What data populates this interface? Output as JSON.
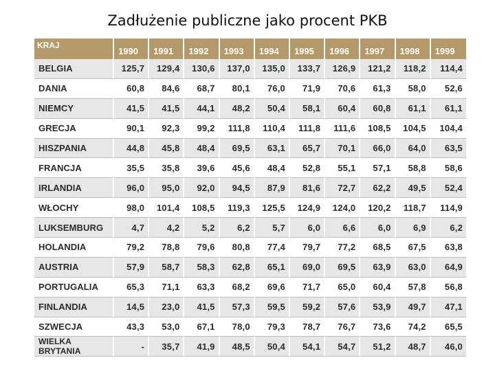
{
  "title": "Zadłużenie publiczne jako procent PKB",
  "table": {
    "country_header": "KRAJ",
    "years": [
      "1990",
      "1991",
      "1992",
      "1993",
      "1994",
      "1995",
      "1996",
      "1997",
      "1998",
      "1999"
    ],
    "rows": [
      {
        "country": "BELGIA",
        "values": [
          "125,7",
          "129,4",
          "130,6",
          "137,0",
          "135,0",
          "133,7",
          "126,9",
          "121,2",
          "118,2",
          "114,4"
        ]
      },
      {
        "country": "DANIA",
        "values": [
          "60,8",
          "84,6",
          "68,7",
          "80,1",
          "76,0",
          "71,9",
          "70,6",
          "61,3",
          "58,0",
          "52,6"
        ]
      },
      {
        "country": "NIEMCY",
        "values": [
          "41,5",
          "41,5",
          "44,1",
          "48,2",
          "50,4",
          "58,1",
          "60,4",
          "60,8",
          "61,1",
          "61,1"
        ]
      },
      {
        "country": "GRECJA",
        "values": [
          "90,1",
          "92,3",
          "99,2",
          "111,8",
          "110,4",
          "111,8",
          "111,6",
          "108,5",
          "104,5",
          "104,4"
        ]
      },
      {
        "country": "HISZPANIA",
        "values": [
          "44,8",
          "45,8",
          "48,4",
          "69,5",
          "63,1",
          "65,7",
          "70,1",
          "66,0",
          "64,0",
          "63,5"
        ]
      },
      {
        "country": "FRANCJA",
        "values": [
          "35,5",
          "35,8",
          "39,6",
          "45,6",
          "48,4",
          "52,8",
          "55,1",
          "57,1",
          "58,8",
          "58,6"
        ]
      },
      {
        "country": "IRLANDIA",
        "values": [
          "96,0",
          "95,0",
          "92,0",
          "94,5",
          "87,9",
          "81,6",
          "72,7",
          "62,2",
          "49,5",
          "52,4"
        ]
      },
      {
        "country": "WŁOCHY",
        "values": [
          "98,0",
          "101,4",
          "108,5",
          "119,3",
          "125,5",
          "124,9",
          "124,0",
          "120,2",
          "118,7",
          "114,9"
        ]
      },
      {
        "country": "LUKSEMBURG",
        "values": [
          "4,7",
          "4,2",
          "5,2",
          "6,2",
          "5,7",
          "6,0",
          "6,6",
          "6,0",
          "6,9",
          "6,2"
        ]
      },
      {
        "country": "HOLANDIA",
        "values": [
          "79,2",
          "78,8",
          "79,6",
          "80,8",
          "77,4",
          "79,7",
          "77,2",
          "68,5",
          "67,5",
          "63,8"
        ]
      },
      {
        "country": "AUSTRIA",
        "values": [
          "57,9",
          "58,7",
          "58,3",
          "62,8",
          "65,1",
          "69,0",
          "69,5",
          "63,9",
          "63,0",
          "64,9"
        ]
      },
      {
        "country": "PORTUGALIA",
        "values": [
          "65,3",
          "71,1",
          "63,3",
          "68,2",
          "69,6",
          "71,7",
          "65,0",
          "60,4",
          "57,8",
          "56,8"
        ]
      },
      {
        "country": "FINLANDIA",
        "values": [
          "14,5",
          "23,0",
          "41,5",
          "57,3",
          "59,5",
          "59,2",
          "57,6",
          "53,9",
          "49,7",
          "47,1"
        ]
      },
      {
        "country": "SZWECJA",
        "values": [
          "43,3",
          "53,0",
          "67,1",
          "78,0",
          "79,3",
          "78,7",
          "76,7",
          "73,6",
          "74,2",
          "65,5"
        ]
      },
      {
        "country": "WIELKA BRYTANIA",
        "values": [
          "-",
          "35,7",
          "41,9",
          "48,5",
          "50,4",
          "54,1",
          "54,7",
          "51,2",
          "48,7",
          "46,0"
        ]
      }
    ]
  }
}
